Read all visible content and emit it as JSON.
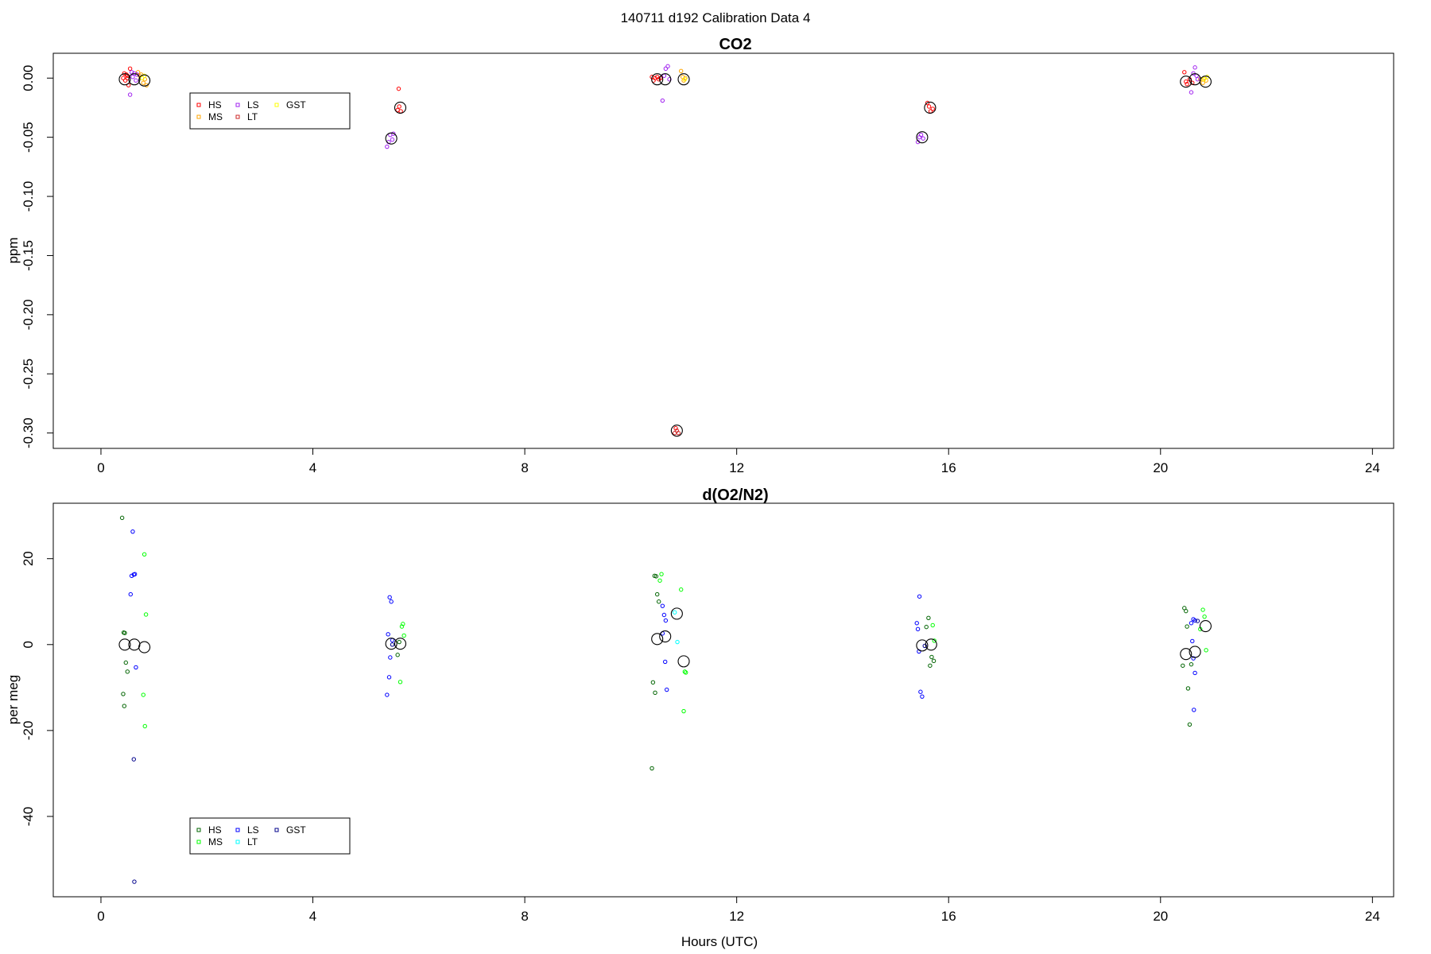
{
  "figure": {
    "suptitle": "140711   d192   Calibration Data 4"
  },
  "chart_data": [
    {
      "type": "scatter",
      "title": "CO2",
      "xlabel": "",
      "ylabel": "ppm",
      "xlim": [
        -0.9,
        24.4
      ],
      "ylim": [
        -0.313,
        0.021
      ],
      "xticks": [
        0,
        4,
        8,
        12,
        16,
        20,
        24
      ],
      "yticks": [
        -0.3,
        -0.25,
        -0.2,
        -0.15,
        -0.1,
        -0.05,
        0.0
      ],
      "ytick_labels": [
        "-0.30",
        "-0.25",
        "-0.20",
        "-0.15",
        "-0.10",
        "-0.05",
        "0.00"
      ],
      "grid": false,
      "legend_placement": "upper-left",
      "legend": [
        {
          "label": "HS",
          "color": "#ff0000"
        },
        {
          "label": "LS",
          "color": "#a020f0"
        },
        {
          "label": "GST",
          "color": "#ffff00"
        },
        {
          "label": "MS",
          "color": "#ffa500"
        },
        {
          "label": "LT",
          "color": "#cd2626"
        }
      ],
      "series": [
        {
          "name": "HS",
          "color": "#ff0000",
          "points": [
            [
              0.42,
              0.0
            ],
            [
              0.44,
              0.004
            ],
            [
              0.46,
              -0.002
            ],
            [
              0.48,
              0.003
            ],
            [
              0.5,
              0.0
            ],
            [
              0.52,
              -0.006
            ],
            [
              0.55,
              0.008
            ],
            [
              0.5,
              0.002
            ],
            [
              5.62,
              -0.009
            ],
            [
              5.6,
              -0.027
            ],
            [
              5.63,
              -0.024
            ],
            [
              5.66,
              -0.028
            ],
            [
              10.4,
              0.001
            ],
            [
              10.43,
              -0.002
            ],
            [
              10.46,
              0.0
            ],
            [
              10.5,
              0.001
            ],
            [
              10.53,
              -0.001
            ],
            [
              10.56,
              0.0
            ],
            [
              10.85,
              -0.296
            ],
            [
              15.6,
              -0.021
            ],
            [
              15.63,
              -0.024
            ],
            [
              15.66,
              -0.028
            ],
            [
              15.7,
              -0.026
            ],
            [
              20.45,
              0.005
            ],
            [
              20.48,
              -0.003
            ],
            [
              20.5,
              -0.005
            ],
            [
              20.55,
              -0.001
            ],
            [
              20.6,
              -0.004
            ]
          ]
        },
        {
          "name": "MS",
          "color": "#ffa500",
          "points": [
            [
              0.7,
              0.005
            ],
            [
              0.73,
              0.002
            ],
            [
              0.76,
              0.003
            ],
            [
              0.8,
              -0.004
            ],
            [
              0.83,
              -0.001
            ],
            [
              0.86,
              -0.006
            ],
            [
              10.95,
              0.006
            ],
            [
              10.98,
              0.001
            ],
            [
              11.0,
              -0.002
            ],
            [
              11.03,
              0.0
            ],
            [
              20.75,
              -0.001
            ],
            [
              20.8,
              -0.004
            ],
            [
              20.83,
              0.0
            ],
            [
              20.86,
              -0.002
            ]
          ]
        },
        {
          "name": "LS",
          "color": "#a020f0",
          "points": [
            [
              0.55,
              -0.014
            ],
            [
              0.58,
              0.005
            ],
            [
              0.6,
              0.001
            ],
            [
              0.63,
              0.004
            ],
            [
              0.66,
              -0.002
            ],
            [
              0.68,
              0.003
            ],
            [
              5.4,
              -0.058
            ],
            [
              5.43,
              -0.054
            ],
            [
              5.46,
              -0.048
            ],
            [
              5.5,
              -0.052
            ],
            [
              5.52,
              -0.047
            ],
            [
              10.6,
              -0.019
            ],
            [
              10.63,
              0.002
            ],
            [
              10.66,
              0.008
            ],
            [
              10.7,
              0.01
            ],
            [
              10.73,
              -0.001
            ],
            [
              15.42,
              -0.054
            ],
            [
              15.45,
              -0.05
            ],
            [
              15.48,
              -0.048
            ],
            [
              15.52,
              -0.051
            ],
            [
              20.58,
              -0.012
            ],
            [
              20.62,
              0.004
            ],
            [
              20.65,
              0.009
            ],
            [
              20.68,
              0.002
            ],
            [
              20.7,
              -0.001
            ]
          ]
        },
        {
          "name": "LT",
          "color": "#cd2626",
          "points": [
            [
              10.83,
              -0.3
            ],
            [
              10.87,
              -0.298
            ],
            [
              10.9,
              -0.3
            ]
          ]
        },
        {
          "name": "GST",
          "color": "#ffff00",
          "points": [
            [
              0.78,
              0.0
            ],
            [
              0.82,
              0.002
            ],
            [
              11.02,
              -0.001
            ],
            [
              20.82,
              -0.001
            ],
            [
              20.88,
              0.001
            ]
          ]
        },
        {
          "name": "",
          "color": "#000000",
          "marker": "large-circle",
          "points": [
            [
              0.45,
              -0.001
            ],
            [
              0.63,
              -0.001
            ],
            [
              0.82,
              -0.002
            ],
            [
              5.65,
              -0.025
            ],
            [
              5.48,
              -0.051
            ],
            [
              10.5,
              -0.001
            ],
            [
              10.65,
              -0.001
            ],
            [
              11.0,
              -0.001
            ],
            [
              10.87,
              -0.298
            ],
            [
              15.65,
              -0.025
            ],
            [
              15.5,
              -0.05
            ],
            [
              20.48,
              -0.003
            ],
            [
              20.65,
              -0.001
            ],
            [
              20.85,
              -0.003
            ]
          ]
        }
      ]
    },
    {
      "type": "scatter",
      "title": "d(O2/N2)",
      "xlabel": "Hours (UTC)",
      "ylabel": "per meg",
      "xlim": [
        -0.9,
        24.4
      ],
      "ylim": [
        -58.7,
        32.9
      ],
      "xticks": [
        0,
        4,
        8,
        12,
        16,
        20,
        24
      ],
      "yticks": [
        -40,
        -20,
        0,
        20
      ],
      "ytick_labels": [
        "-40",
        "-20",
        "0",
        "20"
      ],
      "grid": false,
      "legend_placement": "lower-left",
      "legend": [
        {
          "label": "HS",
          "color": "#006400"
        },
        {
          "label": "LS",
          "color": "#0000ff"
        },
        {
          "label": "GST",
          "color": "#00008b"
        },
        {
          "label": "MS",
          "color": "#00ff00"
        },
        {
          "label": "LT",
          "color": "#00ffff"
        }
      ],
      "series": [
        {
          "name": "HS",
          "color": "#006400",
          "points": [
            [
              0.4,
              29.5
            ],
            [
              0.43,
              2.8
            ],
            [
              0.45,
              2.7
            ],
            [
              0.42,
              -11.5
            ],
            [
              0.44,
              -14.3
            ],
            [
              0.47,
              -4.2
            ],
            [
              0.5,
              -6.3
            ],
            [
              5.6,
              -2.4
            ],
            [
              5.63,
              0.6
            ],
            [
              10.45,
              16.0
            ],
            [
              10.48,
              15.9
            ],
            [
              10.5,
              11.7
            ],
            [
              10.53,
              10.0
            ],
            [
              10.42,
              -8.8
            ],
            [
              10.46,
              -11.2
            ],
            [
              10.4,
              -28.8
            ],
            [
              15.58,
              4.1
            ],
            [
              15.62,
              6.2
            ],
            [
              15.65,
              -4.9
            ],
            [
              15.68,
              -2.9
            ],
            [
              15.72,
              -3.8
            ],
            [
              20.45,
              8.5
            ],
            [
              20.48,
              7.8
            ],
            [
              20.5,
              4.2
            ],
            [
              20.42,
              -4.9
            ],
            [
              20.52,
              -10.2
            ],
            [
              20.55,
              -18.6
            ],
            [
              20.58,
              -4.6
            ]
          ]
        },
        {
          "name": "MS",
          "color": "#00ff00",
          "points": [
            [
              0.82,
              21.0
            ],
            [
              0.85,
              7.0
            ],
            [
              0.8,
              -11.7
            ],
            [
              0.83,
              -19.0
            ],
            [
              5.65,
              -8.7
            ],
            [
              5.68,
              4.2
            ],
            [
              5.7,
              4.8
            ],
            [
              5.72,
              2.1
            ],
            [
              10.55,
              14.9
            ],
            [
              10.58,
              16.4
            ],
            [
              10.95,
              12.8
            ],
            [
              11.02,
              -6.3
            ],
            [
              11.04,
              -6.5
            ],
            [
              11.0,
              -15.5
            ],
            [
              15.7,
              4.5
            ],
            [
              15.73,
              0.9
            ],
            [
              20.8,
              8.1
            ],
            [
              20.83,
              6.5
            ],
            [
              20.86,
              -1.3
            ],
            [
              20.75,
              3.6
            ]
          ]
        },
        {
          "name": "LS",
          "color": "#0000ff",
          "points": [
            [
              0.6,
              26.3
            ],
            [
              0.58,
              16.0
            ],
            [
              0.62,
              16.3
            ],
            [
              0.64,
              16.4
            ],
            [
              0.56,
              11.7
            ],
            [
              0.66,
              -5.3
            ],
            [
              5.45,
              11.0
            ],
            [
              5.48,
              10.0
            ],
            [
              5.42,
              2.4
            ],
            [
              5.5,
              1.0
            ],
            [
              5.46,
              -3.0
            ],
            [
              5.44,
              -7.6
            ],
            [
              5.4,
              -11.7
            ],
            [
              10.6,
              9.0
            ],
            [
              10.63,
              6.9
            ],
            [
              10.66,
              5.6
            ],
            [
              10.6,
              2.6
            ],
            [
              10.65,
              -4.0
            ],
            [
              10.68,
              -10.5
            ],
            [
              15.45,
              11.2
            ],
            [
              15.4,
              5.0
            ],
            [
              15.42,
              3.6
            ],
            [
              15.44,
              -1.6
            ],
            [
              15.47,
              -11.0
            ],
            [
              15.5,
              -12.1
            ],
            [
              20.58,
              5.0
            ],
            [
              20.62,
              5.9
            ],
            [
              20.65,
              5.6
            ],
            [
              20.6,
              0.8
            ],
            [
              20.62,
              -3.2
            ],
            [
              20.65,
              -6.6
            ],
            [
              20.63,
              -15.2
            ]
          ]
        },
        {
          "name": "LT",
          "color": "#00ffff",
          "points": [
            [
              10.83,
              7.5
            ],
            [
              10.88,
              0.6
            ]
          ]
        },
        {
          "name": "GST",
          "color": "#00008b",
          "points": [
            [
              0.62,
              -26.7
            ],
            [
              0.63,
              -55.2
            ],
            [
              5.5,
              0.0
            ],
            [
              15.55,
              -0.3
            ],
            [
              20.7,
              5.5
            ]
          ]
        },
        {
          "name": "",
          "color": "#000000",
          "marker": "large-circle",
          "points": [
            [
              0.45,
              0.0
            ],
            [
              0.63,
              0.0
            ],
            [
              0.82,
              -0.6
            ],
            [
              5.48,
              0.2
            ],
            [
              5.65,
              0.2
            ],
            [
              10.5,
              1.3
            ],
            [
              10.65,
              1.9
            ],
            [
              10.87,
              7.2
            ],
            [
              11.0,
              -3.9
            ],
            [
              15.5,
              -0.2
            ],
            [
              15.67,
              0.0
            ],
            [
              20.48,
              -2.2
            ],
            [
              20.65,
              -1.7
            ],
            [
              20.85,
              4.3
            ]
          ]
        }
      ]
    }
  ]
}
